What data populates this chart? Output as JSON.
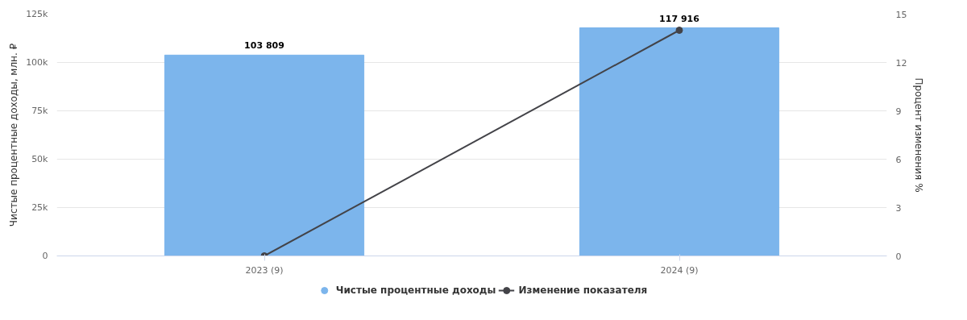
{
  "chart_data": {
    "type": "bar",
    "categories": [
      "2023 (9)",
      "2024 (9)"
    ],
    "series": [
      {
        "name": "Чистые процентные доходы",
        "color": "#7cb5ec",
        "values": [
          103809,
          117916
        ],
        "value_labels": [
          "103 809",
          "117 916"
        ]
      },
      {
        "name": "Изменение показателя",
        "type": "line",
        "axis": "y2",
        "color": "#434348",
        "values": [
          0,
          14
        ],
        "marker": "circle"
      }
    ],
    "ylabel": "Чистые процентные доходы, млн. ₽",
    "y2label": "Процент изменения %",
    "ylim": [
      0,
      125000
    ],
    "yticks": [
      {
        "value": 0,
        "label": "0"
      },
      {
        "value": 25000,
        "label": "25k"
      },
      {
        "value": 50000,
        "label": "50k"
      },
      {
        "value": 75000,
        "label": "75k"
      },
      {
        "value": 100000,
        "label": "100k"
      },
      {
        "value": 125000,
        "label": "125k"
      }
    ],
    "y2lim": [
      0,
      15
    ],
    "y2ticks": [
      0,
      3,
      6,
      9,
      12,
      15
    ],
    "grid": "y",
    "legend": "bottom"
  }
}
